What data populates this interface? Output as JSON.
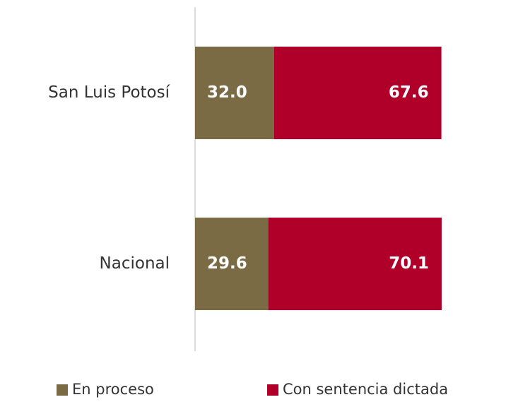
{
  "chart_data": {
    "type": "stacked-bar-horizontal",
    "categories": [
      "San Luis Potosí",
      "Nacional"
    ],
    "series": [
      {
        "name": "En proceso",
        "color": "#7a6b45",
        "values": [
          32.0,
          29.6
        ],
        "value_labels": [
          "32.0",
          "29.6"
        ]
      },
      {
        "name": "Con sentencia dictada",
        "color": "#b0002a",
        "values": [
          67.6,
          70.1
        ],
        "value_labels": [
          "67.6",
          "70.1"
        ]
      }
    ],
    "xlim": [
      0,
      100
    ],
    "legend": "bottom"
  }
}
